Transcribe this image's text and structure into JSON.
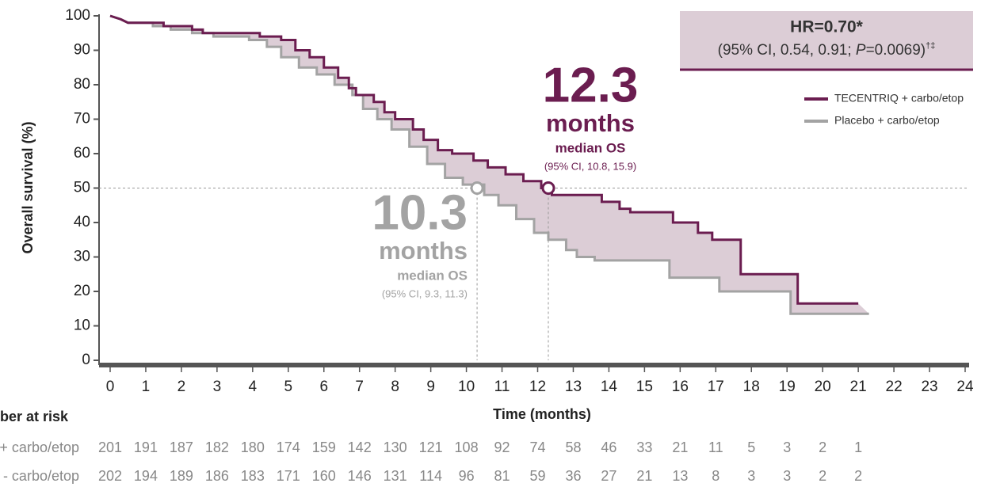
{
  "chart_data": {
    "type": "line",
    "y_label": "Overall survival (%)",
    "x_label": "Time (months)",
    "xlim": [
      0,
      24
    ],
    "ylim": [
      0,
      100
    ],
    "xticks": [
      0,
      1,
      2,
      3,
      4,
      5,
      6,
      7,
      8,
      9,
      10,
      11,
      12,
      13,
      14,
      15,
      16,
      17,
      18,
      19,
      20,
      21,
      22,
      23,
      24
    ],
    "yticks": [
      0,
      10,
      20,
      30,
      40,
      50,
      60,
      70,
      80,
      90,
      100
    ],
    "reference_y": 50,
    "fill_between": "#dccdd6",
    "series": [
      {
        "name": "TECENTRIQ + carbo/etop",
        "color": "#6b1d50",
        "x": [
          0,
          0.3,
          0.5,
          1.5,
          1.5,
          2.3,
          2.3,
          2.6,
          2.6,
          4.2,
          4.2,
          4.8,
          4.8,
          5.2,
          5.2,
          5.6,
          5.6,
          6,
          6,
          6.4,
          6.4,
          6.7,
          6.7,
          6.9,
          6.9,
          7.4,
          7.4,
          7.7,
          7.7,
          8,
          8,
          8.5,
          8.5,
          8.8,
          8.8,
          9.2,
          9.2,
          9.6,
          9.6,
          10.2,
          10.2,
          10.6,
          10.6,
          11.1,
          11.1,
          11.6,
          11.6,
          12.1,
          12.1,
          12.4,
          12.4,
          13.8,
          13.8,
          14.3,
          14.3,
          14.6,
          14.6,
          15.8,
          15.8,
          16.5,
          16.5,
          16.9,
          16.9,
          17.7,
          17.7,
          19.3,
          19.3,
          21
        ],
        "values": [
          100,
          99,
          98,
          98,
          97,
          97,
          96,
          96,
          95,
          95,
          94,
          94,
          93,
          93,
          90,
          90,
          88,
          88,
          85,
          85,
          82,
          82,
          79,
          79,
          77,
          77,
          75,
          75,
          72,
          72,
          70,
          70,
          67,
          67,
          64,
          64,
          61,
          61,
          60,
          60,
          58,
          58,
          56,
          56,
          54,
          54,
          52,
          52,
          50,
          50,
          48,
          48,
          46,
          46,
          44,
          44,
          43,
          43,
          40,
          40,
          37,
          37,
          35,
          35,
          25,
          25,
          16.5,
          16.5
        ]
      },
      {
        "name": "Placebo + carbo/etop",
        "color": "#a3a3a3",
        "x": [
          0,
          0.3,
          0.5,
          1.2,
          1.2,
          1.7,
          1.7,
          2.3,
          2.3,
          2.9,
          2.9,
          3.9,
          3.9,
          4.4,
          4.4,
          4.8,
          4.8,
          5.3,
          5.3,
          5.8,
          5.8,
          6.3,
          6.3,
          6.8,
          6.8,
          7.1,
          7.1,
          7.5,
          7.5,
          7.9,
          7.9,
          8.4,
          8.4,
          8.9,
          8.9,
          9.4,
          9.4,
          9.9,
          9.9,
          10.5,
          10.5,
          10.9,
          10.9,
          11.4,
          11.4,
          11.9,
          11.9,
          12.3,
          12.3,
          12.8,
          12.8,
          13.1,
          13.1,
          13.6,
          13.6,
          15.7,
          15.7,
          17.1,
          17.1,
          19.1,
          19.1,
          21.3
        ],
        "values": [
          100,
          99,
          98,
          98,
          97,
          97,
          96,
          96,
          95,
          95,
          94,
          94,
          93,
          93,
          91,
          91,
          88,
          88,
          85,
          85,
          83,
          83,
          80,
          80,
          77,
          77,
          73,
          73,
          70,
          70,
          67,
          67,
          62,
          62,
          57,
          57,
          53,
          53,
          51,
          51,
          48,
          48,
          45,
          45,
          41,
          41,
          37,
          37,
          35,
          35,
          32,
          32,
          30,
          30,
          29,
          29,
          24,
          24,
          20,
          20,
          13.5,
          13.5
        ]
      }
    ],
    "medians": [
      {
        "x": 12.3,
        "y": 50,
        "unit": "months",
        "label": "median OS",
        "ci": "(95% CI, 10.8, 15.9)"
      },
      {
        "x": 10.3,
        "y": 50,
        "unit": "months",
        "label": "median OS",
        "ci": "(95% CI, 9.3, 11.3)"
      }
    ],
    "hr_box": {
      "title": "HR=0.70*",
      "ci_start": "(95% CI, 0.54, 0.91; ",
      "p_symbol": "P",
      "p_value": "=0.0069)",
      "marks": "†‡"
    },
    "risk_table": {
      "title": "ber at risk",
      "rows": [
        {
          "label": "+ carbo/etop",
          "values": [
            201,
            191,
            187,
            182,
            180,
            174,
            159,
            142,
            130,
            121,
            108,
            92,
            74,
            58,
            46,
            33,
            21,
            11,
            5,
            3,
            2,
            1
          ]
        },
        {
          "label": "- carbo/etop",
          "values": [
            202,
            194,
            189,
            186,
            183,
            171,
            160,
            146,
            131,
            114,
            96,
            81,
            59,
            36,
            27,
            21,
            13,
            8,
            3,
            3,
            2,
            2
          ]
        }
      ]
    }
  }
}
